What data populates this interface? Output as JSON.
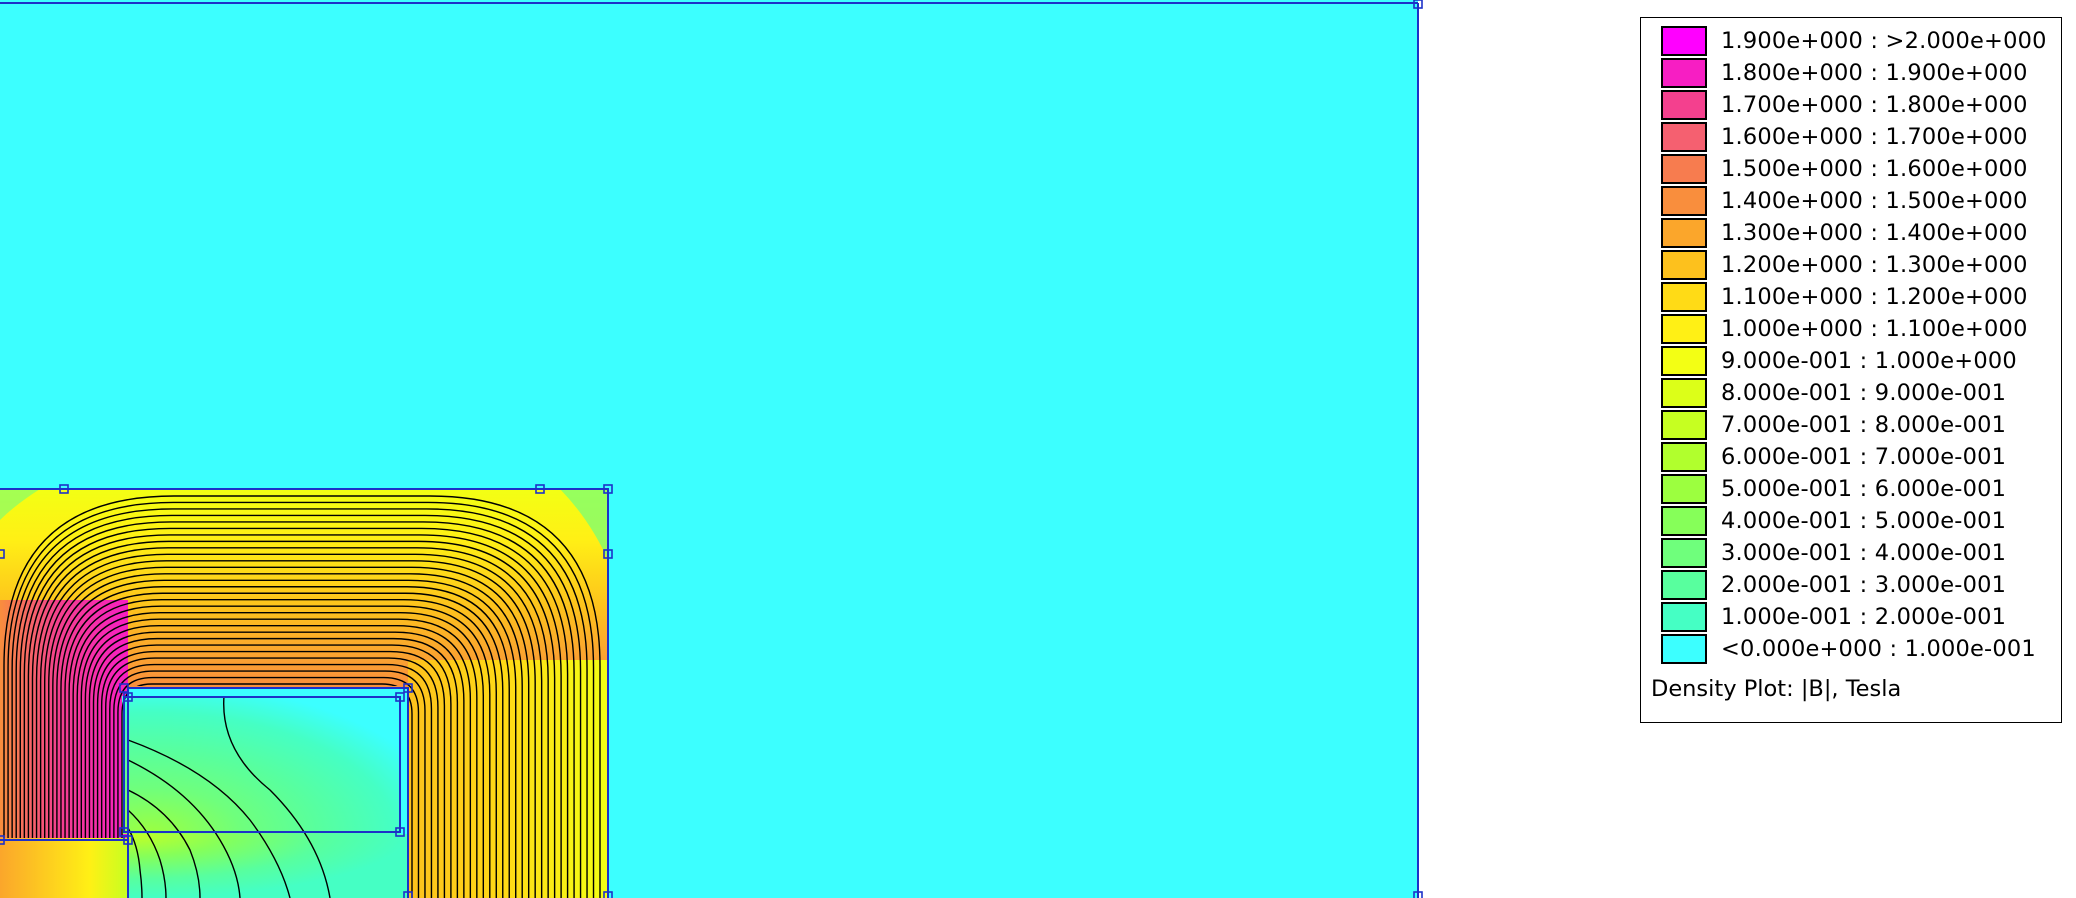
{
  "legend": {
    "caption": "Density Plot: |B|, Tesla",
    "entries": [
      {
        "label": "1.900e+000 : >2.000e+000",
        "color": "#ff00ff"
      },
      {
        "label": "1.800e+000 : 1.900e+000",
        "color": "#f71ec3"
      },
      {
        "label": "1.700e+000 : 1.800e+000",
        "color": "#f4408e"
      },
      {
        "label": "1.600e+000 : 1.700e+000",
        "color": "#f56070"
      },
      {
        "label": "1.500e+000 : 1.600e+000",
        "color": "#f77c4f"
      },
      {
        "label": "1.400e+000 : 1.500e+000",
        "color": "#f98e3d"
      },
      {
        "label": "1.300e+000 : 1.400e+000",
        "color": "#fba62b"
      },
      {
        "label": "1.200e+000 : 1.300e+000",
        "color": "#fdc11d"
      },
      {
        "label": "1.100e+000 : 1.200e+000",
        "color": "#ffdb16"
      },
      {
        "label": "1.000e+000 : 1.100e+000",
        "color": "#fff015"
      },
      {
        "label": "9.000e-001 : 1.000e+000",
        "color": "#f3ff14"
      },
      {
        "label": "8.000e-001 : 9.000e-001",
        "color": "#dcff18"
      },
      {
        "label": "7.000e-001 : 8.000e-001",
        "color": "#c6ff21"
      },
      {
        "label": "6.000e-001 : 7.000e-001",
        "color": "#b1ff2d"
      },
      {
        "label": "5.000e-001 : 6.000e-001",
        "color": "#9cff3f"
      },
      {
        "label": "4.000e-001 : 5.000e-001",
        "color": "#86ff59"
      },
      {
        "label": "3.000e-001 : 4.000e-001",
        "color": "#6fff7c"
      },
      {
        "label": "2.000e-001 : 3.000e-001",
        "color": "#58ff9e"
      },
      {
        "label": "1.000e-001 : 2.000e-001",
        "color": "#45ffc4"
      },
      {
        "label": "<0.000e+000 : 1.000e-001",
        "color": "#3cffff"
      }
    ]
  },
  "colors": {
    "air": "#3cffff",
    "boundary": "#1d31c8",
    "flux_lines": "#000000"
  }
}
